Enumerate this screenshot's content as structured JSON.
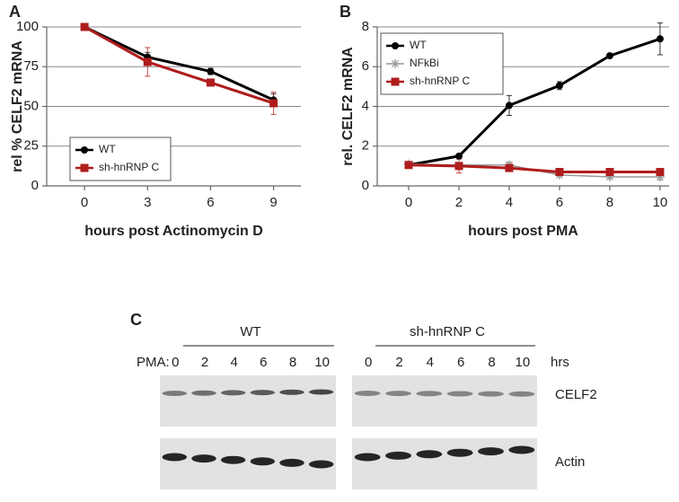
{
  "chart_data": [
    {
      "type": "line",
      "panel": "A",
      "y_label": "rel % CELF2 mRNA",
      "x_label": "hours post Actinomycin D",
      "x": [
        0,
        3,
        6,
        9
      ],
      "xlim": [
        -1.8,
        10.3
      ],
      "xticks": [
        0,
        3,
        6,
        9
      ],
      "ylim": [
        0,
        100
      ],
      "yticks": [
        0,
        25,
        50,
        75,
        100
      ],
      "grid": true,
      "legend": "lower left",
      "series": [
        {
          "name": "WT",
          "color": "#000000",
          "marker": "circle",
          "values": [
            100,
            81,
            72,
            54
          ],
          "errors": [
            0.5,
            3,
            2,
            4
          ]
        },
        {
          "name": "sh-hnRNP C",
          "color": "#b01c1c",
          "marker": "square",
          "values": [
            100,
            78,
            65,
            52
          ],
          "errors": [
            0.5,
            9,
            2,
            7
          ]
        }
      ]
    },
    {
      "type": "line",
      "panel": "B",
      "y_label": "rel. CELF2 mRNA",
      "x_label": "hours post PMA",
      "x": [
        0,
        2,
        4,
        6,
        8,
        10
      ],
      "xlim": [
        -1.25,
        10.36
      ],
      "xticks": [
        0,
        2,
        4,
        6,
        8,
        10
      ],
      "ylim": [
        0,
        8
      ],
      "yticks": [
        0,
        2,
        4,
        6,
        8
      ],
      "grid": true,
      "legend": "upper left",
      "series": [
        {
          "name": "WT",
          "color": "#000000",
          "marker": "circle",
          "values": [
            1.05,
            1.5,
            4.05,
            5.05,
            6.55,
            7.4
          ],
          "errors": [
            0.05,
            0.1,
            0.5,
            0.2,
            0.1,
            0.8
          ]
        },
        {
          "name": "NFkBi",
          "color": "#999999",
          "marker": "star",
          "values": [
            1.1,
            1.05,
            1.05,
            0.55,
            0.45,
            0.45
          ],
          "errors": [
            0.1,
            0.1,
            0.15,
            0.1,
            0.1,
            0.15
          ]
        },
        {
          "name": "sh-hnRNP C",
          "color": "#b01c1c",
          "marker": "square",
          "values": [
            1.05,
            1.0,
            0.9,
            0.7,
            0.7,
            0.7
          ],
          "errors": [
            0.1,
            0.35,
            0.1,
            0.1,
            0.1,
            0.15
          ]
        }
      ]
    }
  ],
  "blot": {
    "panel": "C",
    "treatment_label": "PMA:",
    "unit": "hrs",
    "rows": [
      "CELF2",
      "Actin"
    ],
    "groups": [
      {
        "label": "WT",
        "lanes": [
          0,
          2,
          4,
          6,
          8,
          10
        ]
      },
      {
        "label": "sh-hnRNP C",
        "lanes": [
          0,
          2,
          4,
          6,
          8,
          10
        ]
      }
    ]
  }
}
